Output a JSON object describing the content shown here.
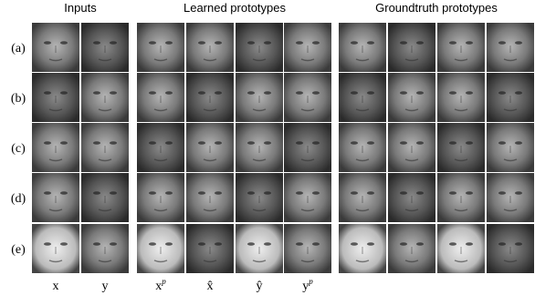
{
  "headers": {
    "inputs": "Inputs",
    "learned": "Learned prototypes",
    "groundtruth": "Groundtruth prototypes"
  },
  "rows": [
    "(a)",
    "(b)",
    "(c)",
    "(d)",
    "(e)"
  ],
  "column_labels": [
    {
      "base": "x"
    },
    {
      "base": "y"
    },
    {
      "base": "x",
      "sup": "p"
    },
    {
      "base": "x̂"
    },
    {
      "base": "ŷ"
    },
    {
      "base": "y",
      "sup": "p"
    }
  ]
}
